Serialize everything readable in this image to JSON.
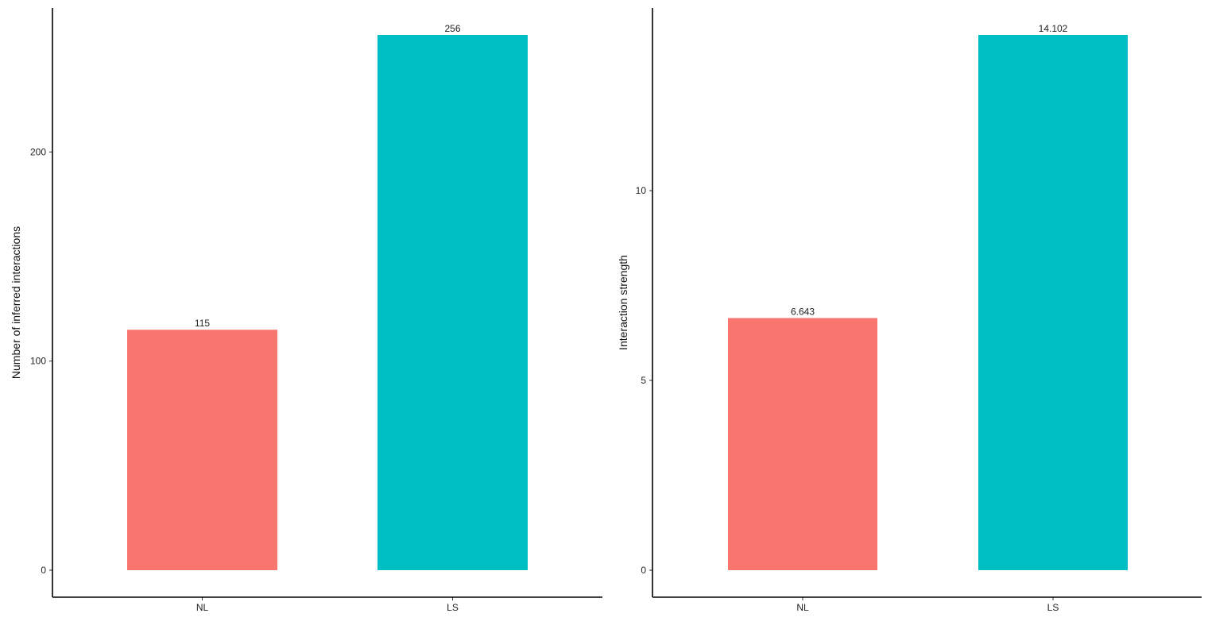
{
  "chart_data": [
    {
      "type": "bar",
      "categories": [
        "NL",
        "LS"
      ],
      "values": [
        115,
        256
      ],
      "value_labels": [
        "115",
        "256"
      ],
      "colors": [
        "#F8766D",
        "#00BFC4"
      ],
      "title": "",
      "xlabel": "",
      "ylabel": "Number of inferred interactions",
      "ylim": [
        0,
        256
      ],
      "yticks": [
        0,
        100,
        200
      ],
      "grid": false,
      "legend": "none"
    },
    {
      "type": "bar",
      "categories": [
        "NL",
        "LS"
      ],
      "values": [
        6.643,
        14.102
      ],
      "value_labels": [
        "6.643",
        "14.102"
      ],
      "colors": [
        "#F8766D",
        "#00BFC4"
      ],
      "title": "",
      "xlabel": "",
      "ylabel": "Interaction strength",
      "ylim": [
        0,
        14.102
      ],
      "yticks": [
        0,
        5,
        10
      ],
      "grid": false,
      "legend": "none"
    }
  ]
}
